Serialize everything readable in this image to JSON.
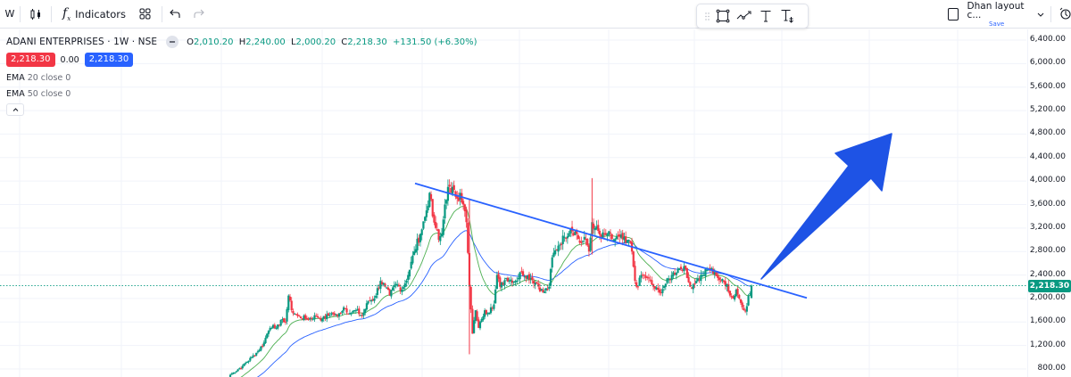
{
  "topbar": {
    "interval": "W",
    "chart_type_icon": "candles-icon",
    "indicators_label": "Indicators",
    "templates_icon": "grid-icon",
    "undo_icon": "undo-icon",
    "redo_icon": "redo-icon",
    "layout_name": "Dhan layout c...",
    "layout_save": "Save",
    "layout_chevron": "chevron-down-icon",
    "quick_search_icon": "stopwatch-icon"
  },
  "drawing_toolbar": {
    "tools": [
      {
        "name": "drag-handle-icon"
      },
      {
        "name": "rectangle-icon"
      },
      {
        "name": "path-icon"
      },
      {
        "name": "text-icon"
      },
      {
        "name": "text-with-anchor-icon"
      }
    ]
  },
  "legend": {
    "symbol": "ADANI ENTERPRISES · 1W · NSE",
    "open_key": "O",
    "open": "2,010.20",
    "high_key": "H",
    "high": "2,240.00",
    "low_key": "L",
    "low": "2,000.20",
    "close_key": "C",
    "close": "2,218.30",
    "change": "+131.50 (+6.30%)",
    "sell_price": "2,218.30",
    "spread": "0.00",
    "buy_price": "2,218.30",
    "indicators": [
      {
        "name": "EMA",
        "params": "20 close 0"
      },
      {
        "name": "EMA",
        "params": "50 close 0"
      }
    ]
  },
  "colors": {
    "up": "#089981",
    "down": "#f23645",
    "ema20": "#4caf50",
    "ema50": "#2962ff",
    "trendline": "#2962ff",
    "arrow": "#1e53e5",
    "sell": "#f23645",
    "buy": "#2962ff",
    "grid": "#f0f3fa",
    "last_price_line": "#089981"
  },
  "price_axis": {
    "labels": [
      "6,400.00",
      "6,000.00",
      "5,600.00",
      "5,200.00",
      "4,800.00",
      "4,400.00",
      "4,000.00",
      "3,600.00",
      "3,200.00",
      "2,800.00",
      "2,400.00",
      "2,000.00",
      "1,600.00",
      "1,200.00",
      "800.00"
    ],
    "last_price": "2,218.30"
  },
  "chart_data": {
    "type": "candlestick",
    "title": "ADANI ENTERPRISES · 1W · NSE",
    "ylim": [
      800,
      6400
    ],
    "y_ticks": [
      6400,
      6000,
      5600,
      5200,
      4800,
      4400,
      4000,
      3600,
      3200,
      2800,
      2400,
      2000,
      1600,
      1200,
      800
    ],
    "last_close": 2218.3,
    "overlays": [
      "EMA 20 close",
      "EMA 50 close"
    ],
    "trendline": {
      "from_price": 3960,
      "to_price": 2010,
      "description": "descending resistance trendline from peak"
    },
    "annotation": "Large blue up-arrow indicating expected breakout",
    "close_waypoints": [
      [
        0,
        700
      ],
      [
        8,
        850
      ],
      [
        14,
        1000
      ],
      [
        18,
        1100
      ],
      [
        22,
        1250
      ],
      [
        24,
        1400
      ],
      [
        26,
        1500
      ],
      [
        28,
        1550
      ],
      [
        30,
        1500
      ],
      [
        32,
        1550
      ],
      [
        34,
        1650
      ],
      [
        36,
        1600
      ],
      [
        38,
        2050
      ],
      [
        40,
        1800
      ],
      [
        44,
        1700
      ],
      [
        50,
        1650
      ],
      [
        56,
        1700
      ],
      [
        60,
        1650
      ],
      [
        66,
        1750
      ],
      [
        70,
        1700
      ],
      [
        74,
        1850
      ],
      [
        78,
        1750
      ],
      [
        82,
        1800
      ],
      [
        86,
        1700
      ],
      [
        90,
        1950
      ],
      [
        94,
        2000
      ],
      [
        98,
        2300
      ],
      [
        101,
        2200
      ],
      [
        104,
        2050
      ],
      [
        108,
        2250
      ],
      [
        112,
        2150
      ],
      [
        116,
        2400
      ],
      [
        120,
        2800
      ],
      [
        124,
        3100
      ],
      [
        128,
        3500
      ],
      [
        130,
        3800
      ],
      [
        132,
        3400
      ],
      [
        134,
        3200
      ],
      [
        136,
        3000
      ],
      [
        138,
        3100
      ],
      [
        140,
        3600
      ],
      [
        142,
        3900
      ],
      [
        144,
        3800
      ],
      [
        146,
        3850
      ],
      [
        148,
        3700
      ],
      [
        150,
        3800
      ],
      [
        152,
        3600
      ],
      [
        154,
        3300
      ],
      [
        156,
        2200
      ],
      [
        158,
        1400
      ],
      [
        160,
        1800
      ],
      [
        162,
        1500
      ],
      [
        164,
        1650
      ],
      [
        166,
        1800
      ],
      [
        168,
        1750
      ],
      [
        170,
        1850
      ],
      [
        172,
        1900
      ],
      [
        174,
        2400
      ],
      [
        176,
        2200
      ],
      [
        180,
        2350
      ],
      [
        186,
        2300
      ],
      [
        190,
        2450
      ],
      [
        196,
        2350
      ],
      [
        200,
        2250
      ],
      [
        204,
        2100
      ],
      [
        208,
        2200
      ],
      [
        210,
        2700
      ],
      [
        214,
        2900
      ],
      [
        218,
        3050
      ],
      [
        222,
        3200
      ],
      [
        226,
        3100
      ],
      [
        228,
        2950
      ],
      [
        232,
        3000
      ],
      [
        234,
        2800
      ],
      [
        236,
        3300
      ],
      [
        238,
        3200
      ],
      [
        242,
        3050
      ],
      [
        246,
        3100
      ],
      [
        250,
        3000
      ],
      [
        254,
        3050
      ],
      [
        258,
        2950
      ],
      [
        260,
        3000
      ],
      [
        262,
        2800
      ],
      [
        264,
        2300
      ],
      [
        266,
        2200
      ],
      [
        268,
        2400
      ],
      [
        272,
        2350
      ],
      [
        276,
        2200
      ],
      [
        280,
        2100
      ],
      [
        284,
        2250
      ],
      [
        288,
        2400
      ],
      [
        292,
        2500
      ],
      [
        296,
        2550
      ],
      [
        298,
        2350
      ],
      [
        300,
        2200
      ],
      [
        304,
        2300
      ],
      [
        308,
        2400
      ],
      [
        312,
        2500
      ],
      [
        316,
        2450
      ],
      [
        318,
        2350
      ],
      [
        320,
        2300
      ],
      [
        324,
        2250
      ],
      [
        326,
        2050
      ],
      [
        328,
        2000
      ],
      [
        330,
        2150
      ],
      [
        332,
        2000
      ],
      [
        334,
        1850
      ],
      [
        336,
        1780
      ],
      [
        338,
        2050
      ],
      [
        340,
        2218
      ]
    ]
  }
}
